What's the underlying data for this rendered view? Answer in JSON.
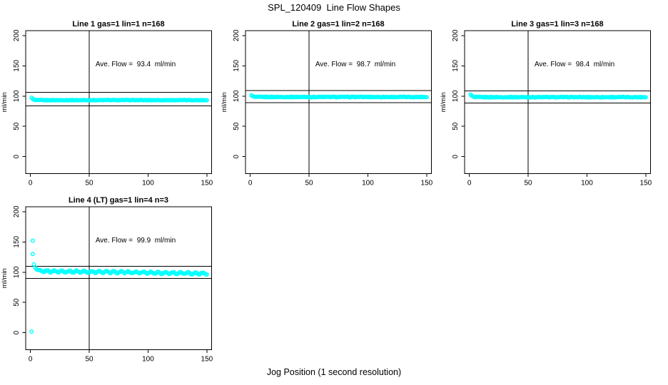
{
  "main_title": "SPL_120409  Line Flow Shapes",
  "x_axis_label": "Jog Position (1 second resolution)",
  "y_axis_label": "ml/min",
  "colors": {
    "points": "#00ffff",
    "axis": "#000000",
    "background": "#ffffff"
  },
  "chart_data": [
    {
      "type": "scatter",
      "title": "Line 1 gas=1 lin=1 n=168",
      "n": 168,
      "annotation": "Ave. Flow =  93.4  ml/min",
      "ave_flow_ml_min": 93.4,
      "xlabel": "Jog Position (1 second resolution)",
      "ylabel": "ml/min",
      "xlim": [
        0,
        150
      ],
      "ylim": [
        0,
        200
      ],
      "xticks": [
        0,
        50,
        100,
        150
      ],
      "yticks": [
        0,
        50,
        100,
        150,
        200
      ],
      "vline_x": 50,
      "hlines": [
        84,
        106
      ],
      "series": {
        "start_points": [
          [
            1,
            97.3
          ],
          [
            2,
            95.2
          ],
          [
            3,
            94.2
          ]
        ],
        "x_from": 4,
        "x_to": 150,
        "baseline": 93.3,
        "slope": 0,
        "noise_amp": 0.45,
        "wave_amp": 0,
        "wave_period": 7
      }
    },
    {
      "type": "scatter",
      "title": "Line 2 gas=1 lin=2 n=168",
      "n": 168,
      "annotation": "Ave. Flow =  98.7  ml/min",
      "ave_flow_ml_min": 98.7,
      "xlabel": "Jog Position (1 second resolution)",
      "ylabel": "ml/min",
      "xlim": [
        0,
        150
      ],
      "ylim": [
        0,
        200
      ],
      "xticks": [
        0,
        50,
        100,
        150
      ],
      "yticks": [
        0,
        50,
        100,
        150,
        200
      ],
      "vline_x": 50,
      "hlines": [
        89,
        109
      ],
      "series": {
        "start_points": [
          [
            1,
            101.3
          ],
          [
            2,
            99.8
          ],
          [
            3,
            99.2
          ]
        ],
        "x_from": 4,
        "x_to": 150,
        "baseline": 98.5,
        "slope": 0,
        "noise_amp": 0.65,
        "wave_amp": 0,
        "wave_period": 7
      }
    },
    {
      "type": "scatter",
      "title": "Line 3 gas=1 lin=3 n=168",
      "n": 168,
      "annotation": "Ave. Flow =  98.4  ml/min",
      "ave_flow_ml_min": 98.4,
      "xlabel": "Jog Position (1 second resolution)",
      "ylabel": "ml/min",
      "xlim": [
        0,
        150
      ],
      "ylim": [
        0,
        200
      ],
      "xticks": [
        0,
        50,
        100,
        150
      ],
      "yticks": [
        0,
        50,
        100,
        150,
        200
      ],
      "vline_x": 50,
      "hlines": [
        88.5,
        108.5
      ],
      "series": {
        "start_points": [
          [
            1,
            102.5
          ],
          [
            2,
            100.8
          ],
          [
            3,
            99.7
          ]
        ],
        "x_from": 4,
        "x_to": 150,
        "baseline": 98.2,
        "slope": 0,
        "noise_amp": 0.6,
        "wave_amp": 0,
        "wave_period": 7
      }
    },
    {
      "type": "scatter",
      "title": "Line 4 (LT) gas=1 lin=4 n=3",
      "n": 3,
      "annotation": "Ave. Flow =  99.9  ml/min",
      "ave_flow_ml_min": 99.9,
      "xlabel": "Jog Position (1 second resolution)",
      "ylabel": "ml/min",
      "xlim": [
        0,
        150
      ],
      "ylim": [
        0,
        200
      ],
      "xticks": [
        0,
        50,
        100,
        150
      ],
      "yticks": [
        0,
        50,
        100,
        150,
        200
      ],
      "vline_x": 50,
      "hlines": [
        90,
        110
      ],
      "series": {
        "start_points": [
          [
            1,
            2
          ],
          [
            2,
            152
          ],
          [
            2,
            130
          ],
          [
            3,
            113
          ],
          [
            4,
            108
          ],
          [
            5,
            105.5
          ],
          [
            6,
            103.8
          ]
        ],
        "x_from": 7,
        "x_to": 150,
        "baseline": 101.8,
        "slope": -0.028,
        "noise_amp": 0.7,
        "wave_amp": 1.5,
        "wave_period": 6.3
      }
    }
  ]
}
